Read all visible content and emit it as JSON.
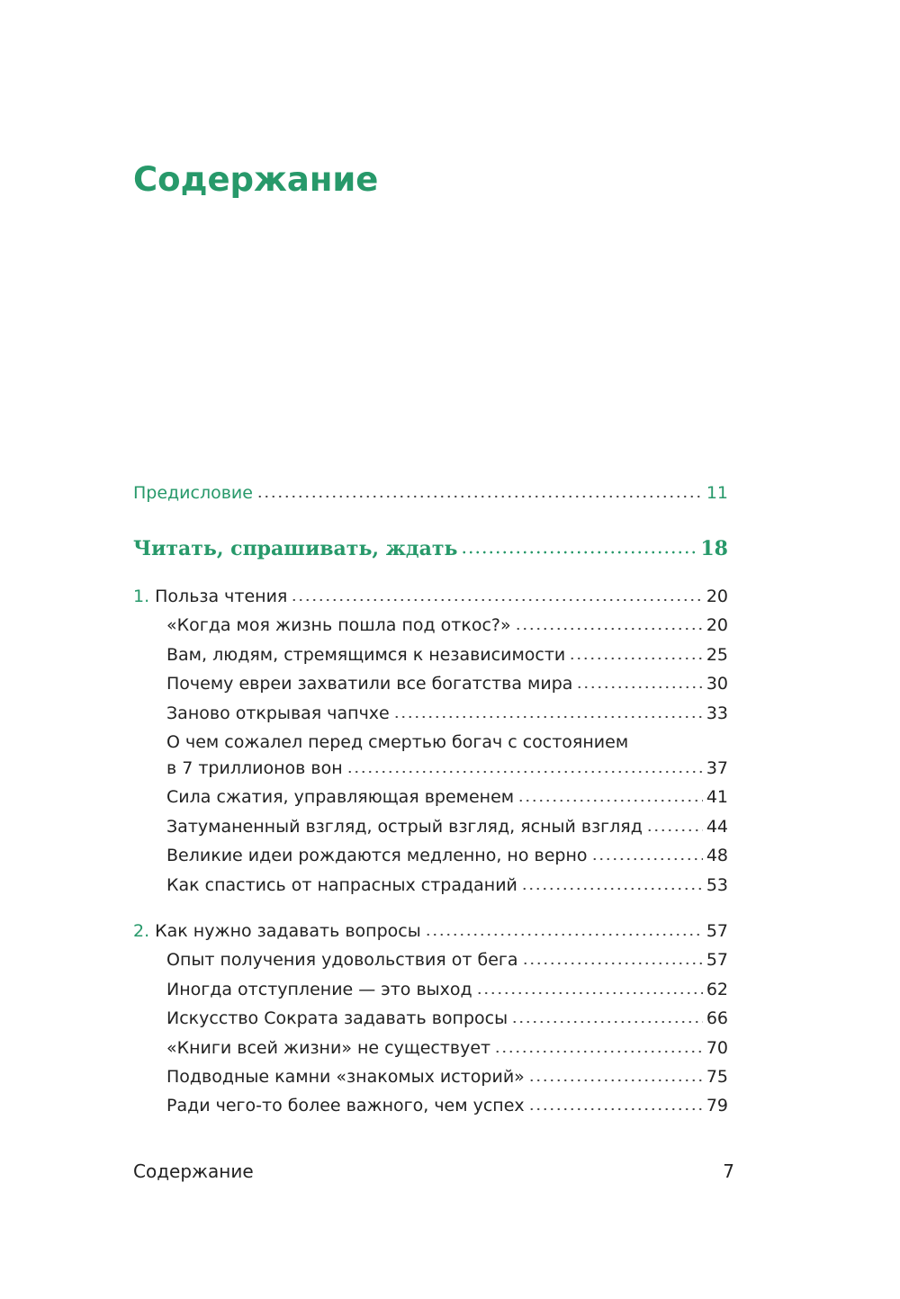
{
  "header": {
    "title": "Содержание"
  },
  "preface": {
    "label": "Предисловие",
    "page": 11
  },
  "part": {
    "label": "Читать, спрашивать, ждать",
    "page": 18
  },
  "chapters": [
    {
      "number": "1.",
      "title": "Польза чтения",
      "page": 20,
      "sections": [
        {
          "lines": [
            "«Когда моя жизнь пошла под откос?»"
          ],
          "page": 20
        },
        {
          "lines": [
            "Вам, людям, стремящимся к независимости"
          ],
          "page": 25
        },
        {
          "lines": [
            "Почему евреи захватили все богатства мира"
          ],
          "page": 30
        },
        {
          "lines": [
            "Заново открывая чапчхе"
          ],
          "page": 33
        },
        {
          "lines": [
            "О чем сожалел перед смертью богач с состоянием",
            "в 7 триллионов вон"
          ],
          "page": 37
        },
        {
          "lines": [
            "Сила сжатия, управляющая временем"
          ],
          "page": 41
        },
        {
          "lines": [
            "Затуманенный взгляд, острый взгляд, ясный взгляд"
          ],
          "page": 44
        },
        {
          "lines": [
            "Великие идеи рождаются медленно, но верно"
          ],
          "page": 48
        },
        {
          "lines": [
            "Как спастись от напрасных страданий"
          ],
          "page": 53
        }
      ]
    },
    {
      "number": "2.",
      "title": "Как нужно задавать вопросы",
      "page": 57,
      "sections": [
        {
          "lines": [
            "Опыт получения удовольствия от бега"
          ],
          "page": 57
        },
        {
          "lines": [
            "Иногда отступление — это выход"
          ],
          "page": 62
        },
        {
          "lines": [
            "Искусство Сократа задавать вопросы"
          ],
          "page": 66
        },
        {
          "lines": [
            "«Книги всей жизни» не существует"
          ],
          "page": 70
        },
        {
          "lines": [
            "Подводные камни «знакомых историй»"
          ],
          "page": 75
        },
        {
          "lines": [
            "Ради чего-то более важного, чем успех"
          ],
          "page": 79
        }
      ]
    }
  ],
  "footer": {
    "label": "Содержание",
    "page": 7
  }
}
